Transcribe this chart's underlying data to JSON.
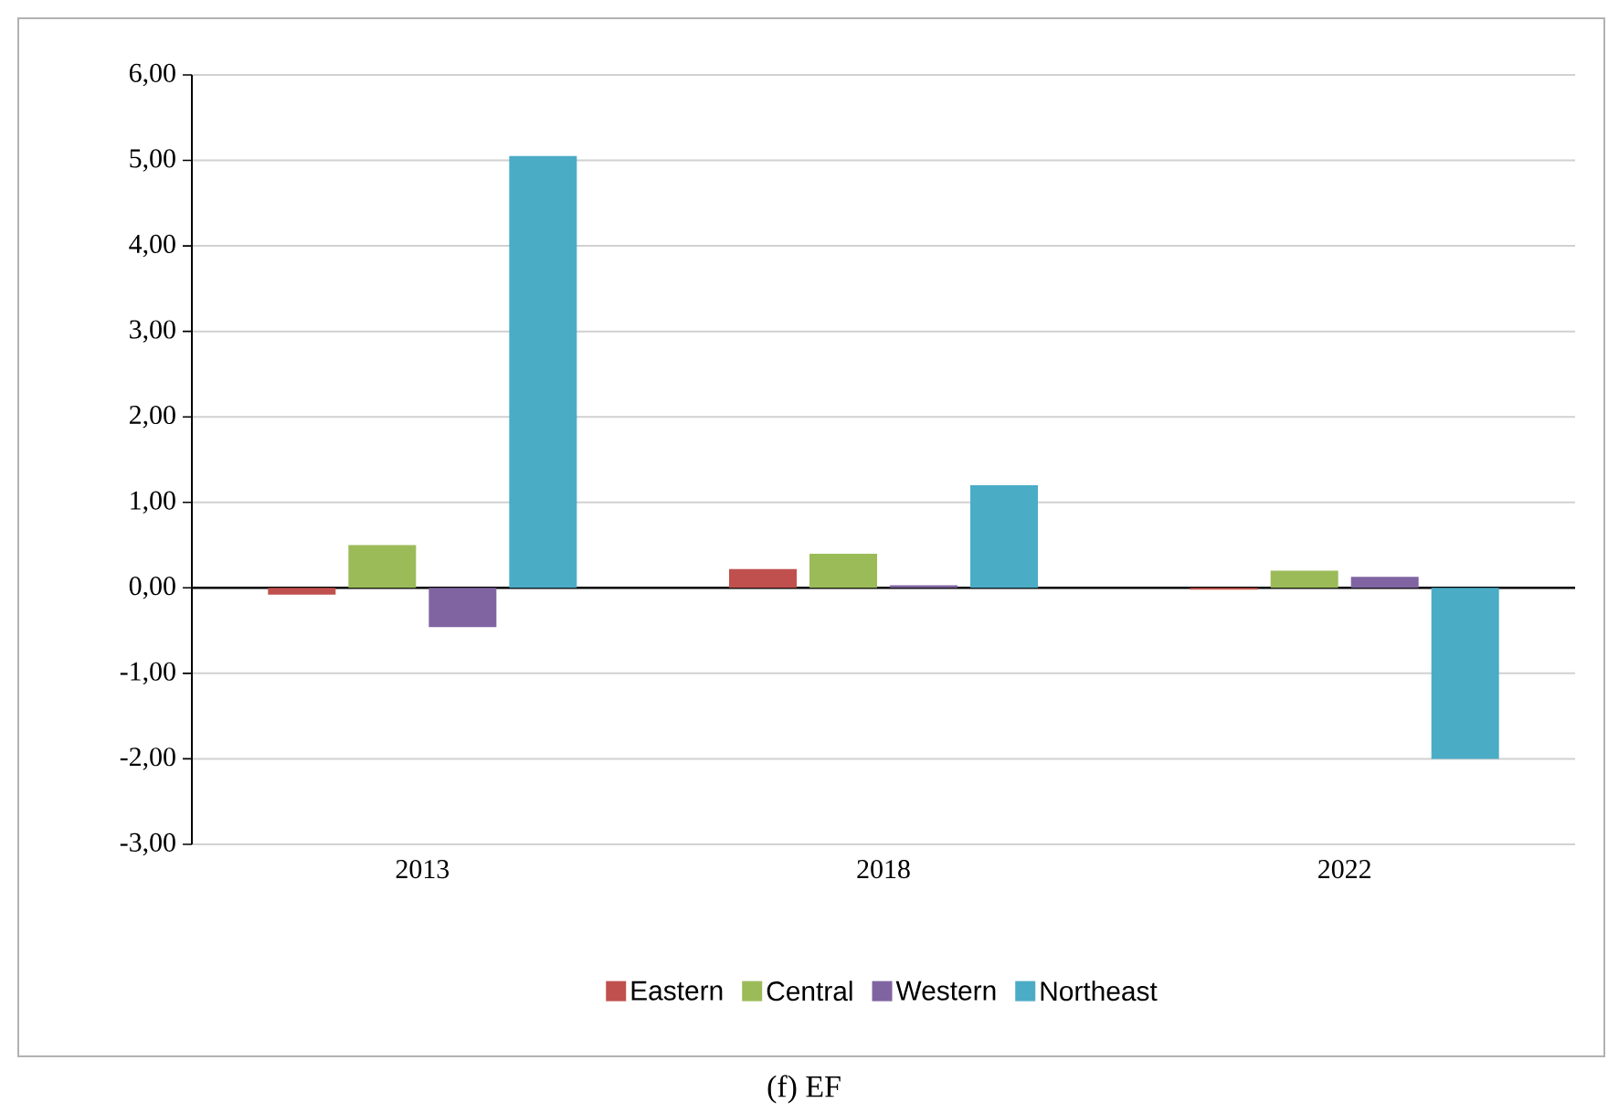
{
  "chart_data": {
    "type": "bar",
    "categories": [
      "2013",
      "2018",
      "2022"
    ],
    "series": [
      {
        "name": "Eastern",
        "color": "#c0504d",
        "values": [
          -0.08,
          0.22,
          -0.02
        ]
      },
      {
        "name": "Central",
        "color": "#9bbb59",
        "values": [
          0.5,
          0.4,
          0.2
        ]
      },
      {
        "name": "Western",
        "color": "#8064a2",
        "values": [
          -0.46,
          0.03,
          0.13
        ]
      },
      {
        "name": "Northeast",
        "color": "#4bacc6",
        "values": [
          5.05,
          1.2,
          -2.0
        ]
      }
    ],
    "ylim": [
      -3,
      6
    ],
    "yticks": [
      {
        "value": -3,
        "label": "-3,00"
      },
      {
        "value": -2,
        "label": "-2,00"
      },
      {
        "value": -1,
        "label": "-1,00"
      },
      {
        "value": 0,
        "label": "0,00"
      },
      {
        "value": 1,
        "label": "1,00"
      },
      {
        "value": 2,
        "label": "2,00"
      },
      {
        "value": 3,
        "label": "3,00"
      },
      {
        "value": 4,
        "label": "4,00"
      },
      {
        "value": 5,
        "label": "5,00"
      },
      {
        "value": 6,
        "label": "6,00"
      }
    ],
    "grid": "y",
    "legend": "bottom",
    "annotations": [
      "(f)   EF"
    ]
  }
}
